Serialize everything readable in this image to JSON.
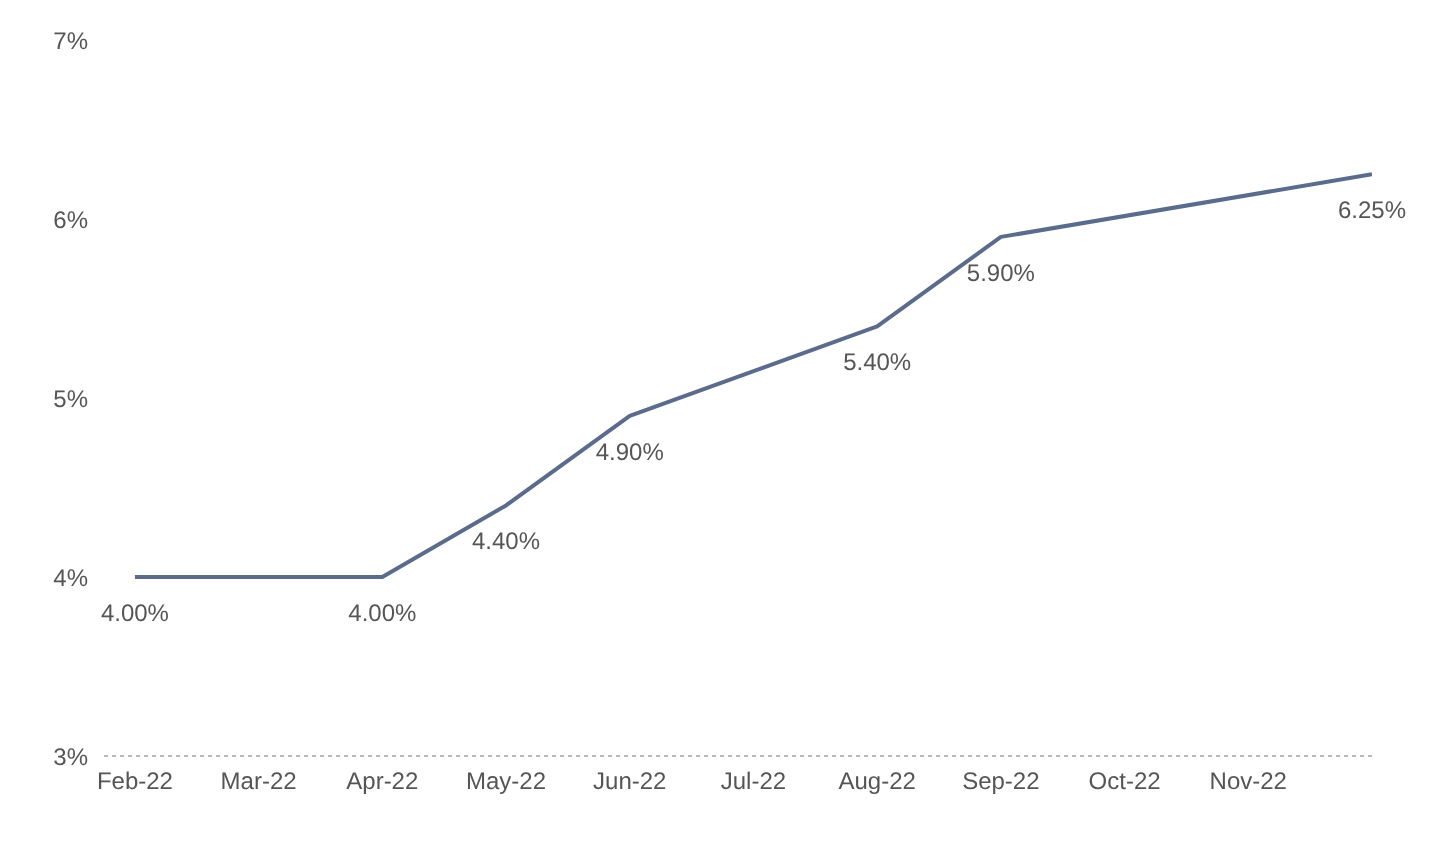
{
  "chart_data": {
    "type": "line",
    "categories": [
      "Feb-22",
      "Mar-22",
      "Apr-22",
      "May-22",
      "Jun-22",
      "Jul-22",
      "Aug-22",
      "Sep-22",
      "Oct-22",
      "Nov-22",
      null
    ],
    "series": [
      {
        "color": "#5b6b8c",
        "values": [
          4.0,
          null,
          4.0,
          4.4,
          4.9,
          null,
          5.4,
          5.9,
          null,
          null,
          6.25
        ],
        "value_labels": [
          "4.00%",
          null,
          "4.00%",
          "4.40%",
          "4.90%",
          null,
          "5.40%",
          "5.90%",
          null,
          null,
          "6.25%"
        ]
      }
    ],
    "ylim": [
      3,
      7
    ],
    "yticks": [
      {
        "value": 3,
        "label": "3%"
      },
      {
        "value": 4,
        "label": "4%"
      },
      {
        "value": 5,
        "label": "5%"
      },
      {
        "value": 6,
        "label": "6%"
      },
      {
        "value": 7,
        "label": "7%"
      }
    ],
    "grid": false,
    "legend": false,
    "marker": "none",
    "line_style": "solid"
  }
}
